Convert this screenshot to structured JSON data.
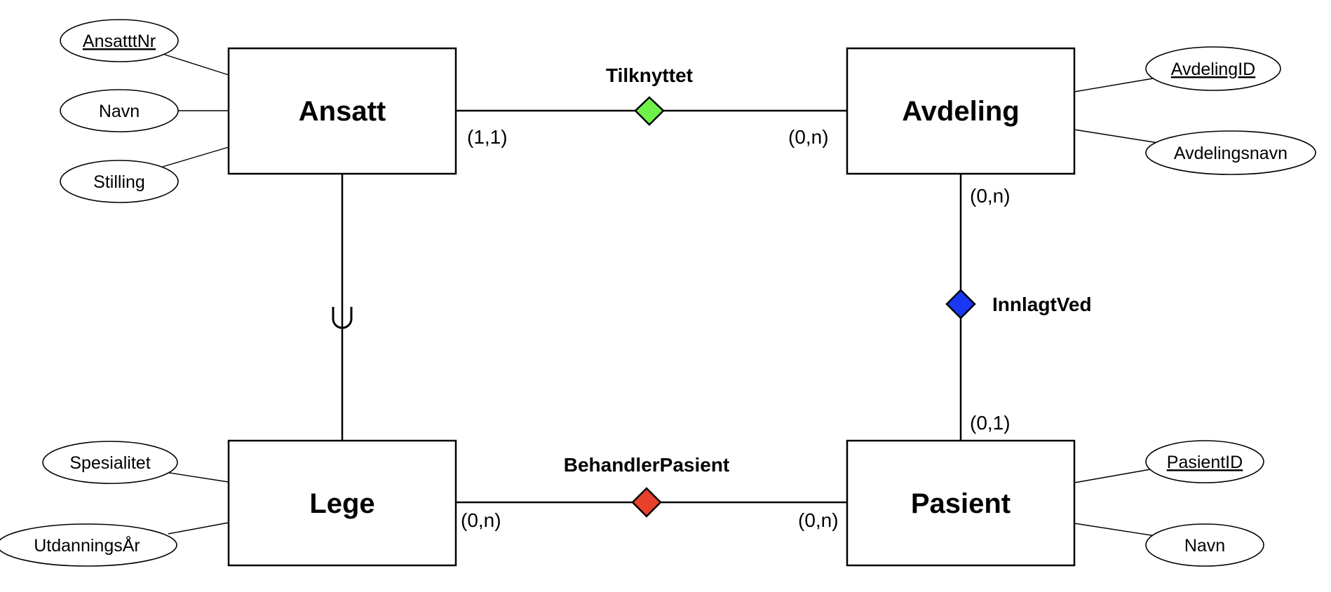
{
  "entities": {
    "ansatt": {
      "name": "Ansatt",
      "attributes": [
        {
          "label": "AnsatttNr",
          "key": true
        },
        {
          "label": "Navn",
          "key": false
        },
        {
          "label": "Stilling",
          "key": false
        }
      ]
    },
    "avdeling": {
      "name": "Avdeling",
      "attributes": [
        {
          "label": "AvdelingID",
          "key": true
        },
        {
          "label": "Avdelingsnavn",
          "key": false
        }
      ]
    },
    "lege": {
      "name": "Lege",
      "attributes": [
        {
          "label": "Spesialitet",
          "key": false
        },
        {
          "label": "UtdanningsÅr",
          "key": false
        }
      ]
    },
    "pasient": {
      "name": "Pasient",
      "attributes": [
        {
          "label": "PasientID",
          "key": true
        },
        {
          "label": "Navn",
          "key": false
        }
      ]
    }
  },
  "relationships": {
    "tilknyttet": {
      "name": "Tilknyttet",
      "color": "#6ef24a",
      "cardinality_ansatt": "(1,1)",
      "cardinality_avdeling": "(0,n)"
    },
    "innlagtved": {
      "name": "InnlagtVed",
      "color": "#1a37f5",
      "cardinality_avdeling": "(0,n)",
      "cardinality_pasient": "(0,1)"
    },
    "behandlerpasient": {
      "name": "BehandlerPasient",
      "color": "#e8412c",
      "cardinality_lege": "(0,n)",
      "cardinality_pasient": "(0,n)"
    }
  },
  "specialization": {
    "symbol": "subset-icon"
  }
}
